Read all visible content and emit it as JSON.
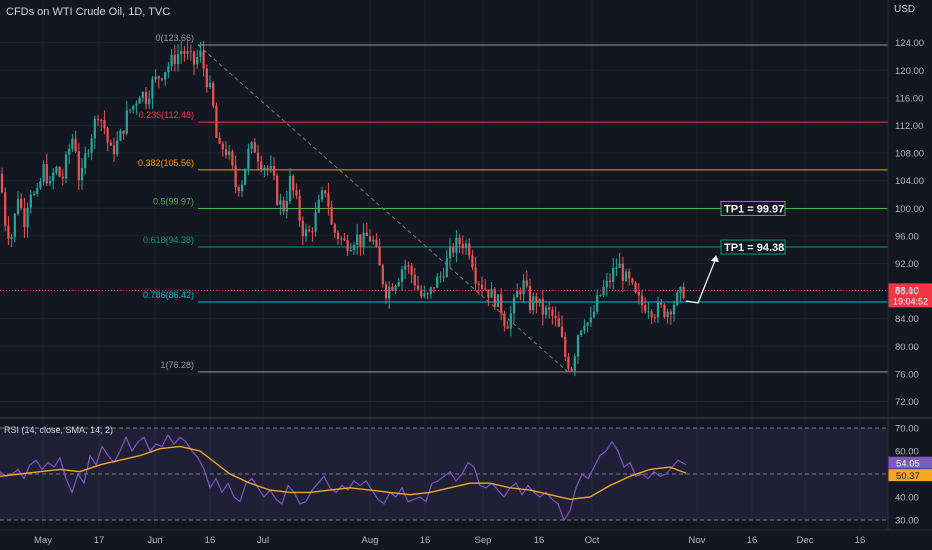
{
  "header": {
    "title": "CFDs on WTI Crude Oil, 1D, TVC",
    "currency": "USD"
  },
  "colors": {
    "background": "#131722",
    "up": "#26a69a",
    "down": "#ef5350",
    "fib_0": "#9598a1",
    "fib_236": "#f23645",
    "fib_382": "#ff9800",
    "fib_5": "#4caf50",
    "fib_618": "#089981",
    "fib_786": "#00bcd4",
    "fib_1": "#9598a1",
    "rsi_line": "#7e57c2",
    "rsi_ma": "#f5a623",
    "price_label": "#f23645"
  },
  "chart_data": [
    {
      "type": "candlestick",
      "title": "CFDs on WTI Crude Oil, 1D, TVC",
      "ylim": [
        70,
        126
      ],
      "y_ticks": [
        "124.00",
        "120.00",
        "116.00",
        "112.00",
        "108.00",
        "104.00",
        "100.00",
        "96.00",
        "92.00",
        "88.00",
        "84.00",
        "80.00",
        "76.00",
        "72.00"
      ],
      "x_ticks": [
        "May",
        "17",
        "Jun",
        "16",
        "Jul",
        "Aug",
        "16",
        "Sep",
        "16",
        "Oct",
        "Nov",
        "16",
        "Dec",
        "16"
      ],
      "price_path": [
        [
          0,
          105
        ],
        [
          6,
          97
        ],
        [
          12,
          96
        ],
        [
          18,
          102
        ],
        [
          24,
          98
        ],
        [
          30,
          103
        ],
        [
          36,
          101
        ],
        [
          44,
          106
        ],
        [
          50,
          103
        ],
        [
          55,
          106
        ],
        [
          62,
          104
        ],
        [
          68,
          108
        ],
        [
          74,
          111
        ],
        [
          80,
          103
        ],
        [
          86,
          108
        ],
        [
          92,
          111
        ],
        [
          98,
          114
        ],
        [
          104,
          112
        ],
        [
          110,
          108
        ],
        [
          116,
          109
        ],
        [
          122,
          111
        ],
        [
          128,
          114
        ],
        [
          134,
          115
        ],
        [
          140,
          117
        ],
        [
          146,
          116
        ],
        [
          152,
          118
        ],
        [
          158,
          119
        ],
        [
          164,
          120
        ],
        [
          170,
          121
        ],
        [
          176,
          122
        ],
        [
          182,
          123
        ],
        [
          188,
          122
        ],
        [
          194,
          121
        ],
        [
          200,
          122.5
        ],
        [
          206,
          119
        ],
        [
          212,
          116
        ],
        [
          218,
          108
        ],
        [
          224,
          109
        ],
        [
          230,
          107
        ],
        [
          236,
          103
        ],
        [
          242,
          104
        ],
        [
          248,
          108
        ],
        [
          254,
          109
        ],
        [
          260,
          107
        ],
        [
          266,
          106
        ],
        [
          272,
          105
        ],
        [
          278,
          101
        ],
        [
          284,
          100
        ],
        [
          290,
          104
        ],
        [
          296,
          101
        ],
        [
          302,
          97
        ],
        [
          308,
          96
        ],
        [
          314,
          98
        ],
        [
          320,
          101
        ],
        [
          326,
          103
        ],
        [
          332,
          97
        ],
        [
          338,
          96
        ],
        [
          344,
          95
        ],
        [
          350,
          95
        ],
        [
          356,
          96
        ],
        [
          362,
          95
        ],
        [
          368,
          96
        ],
        [
          374,
          95
        ],
        [
          380,
          91
        ],
        [
          386,
          88
        ],
        [
          392,
          89
        ],
        [
          398,
          90
        ],
        [
          404,
          92
        ],
        [
          410,
          91
        ],
        [
          416,
          89
        ],
        [
          422,
          87
        ],
        [
          428,
          87
        ],
        [
          434,
          89
        ],
        [
          440,
          90
        ],
        [
          446,
          92
        ],
        [
          452,
          94
        ],
        [
          458,
          95
        ],
        [
          464,
          95
        ],
        [
          470,
          94
        ],
        [
          476,
          90
        ],
        [
          482,
          89
        ],
        [
          488,
          88
        ],
        [
          494,
          87
        ],
        [
          500,
          86
        ],
        [
          506,
          83
        ],
        [
          512,
          85
        ],
        [
          518,
          88
        ],
        [
          524,
          89
        ],
        [
          530,
          86
        ],
        [
          536,
          87
        ],
        [
          542,
          85
        ],
        [
          548,
          85
        ],
        [
          554,
          84
        ],
        [
          560,
          82
        ],
        [
          566,
          78
        ],
        [
          572,
          77
        ],
        [
          578,
          82
        ],
        [
          584,
          84
        ],
        [
          590,
          83
        ],
        [
          596,
          86
        ],
        [
          602,
          88
        ],
        [
          608,
          89
        ],
        [
          614,
          91
        ],
        [
          618,
          92
        ],
        [
          624,
          90
        ],
        [
          630,
          89
        ],
        [
          636,
          87
        ],
        [
          642,
          86
        ],
        [
          648,
          86
        ],
        [
          654,
          85
        ],
        [
          660,
          85.5
        ],
        [
          666,
          85
        ],
        [
          672,
          86
        ],
        [
          678,
          87
        ],
        [
          684,
          88.1
        ]
      ]
    },
    {
      "type": "fibonacci_retracement",
      "levels": [
        {
          "ratio": "0",
          "price": 123.66,
          "label": "0(123.66)"
        },
        {
          "ratio": "0.236",
          "price": 112.48,
          "label": "0.236(112.48)"
        },
        {
          "ratio": "0.382",
          "price": 105.56,
          "label": "0.382(105.56)"
        },
        {
          "ratio": "0.5",
          "price": 99.97,
          "label": "0.5(99.97)"
        },
        {
          "ratio": "0.618",
          "price": 94.38,
          "label": "0.618(94.38)"
        },
        {
          "ratio": "0.786",
          "price": 86.42,
          "label": "0.786(86.42)"
        },
        {
          "ratio": "1",
          "price": 76.28,
          "label": "1(76.28)"
        }
      ],
      "targets": [
        {
          "label": "TP1 = 99.97",
          "price": 99.97
        },
        {
          "label": "TP1 = 94.38",
          "price": 94.38
        }
      ],
      "last_price": {
        "value": "88.10",
        "countdown": "19:04:52"
      }
    },
    {
      "type": "line",
      "title": "RSI (14, close, SMA, 14, 2)",
      "ylim": [
        28,
        72
      ],
      "y_ticks": [
        "70.00",
        "60.00",
        "50.00",
        "40.00",
        "30.00"
      ],
      "bands": [
        70,
        50,
        30
      ],
      "series": [
        {
          "name": "RSI",
          "value_label": "54.05",
          "path": [
            [
              0,
              51
            ],
            [
              6,
              49
            ],
            [
              12,
              50
            ],
            [
              18,
              52
            ],
            [
              24,
              48
            ],
            [
              30,
              54
            ],
            [
              36,
              56
            ],
            [
              42,
              52
            ],
            [
              48,
              55
            ],
            [
              54,
              53
            ],
            [
              60,
              57
            ],
            [
              66,
              48
            ],
            [
              72,
              42
            ],
            [
              78,
              50
            ],
            [
              84,
              46
            ],
            [
              90,
              58
            ],
            [
              96,
              54
            ],
            [
              102,
              62
            ],
            [
              108,
              58
            ],
            [
              114,
              55
            ],
            [
              120,
              60
            ],
            [
              126,
              66
            ],
            [
              132,
              60
            ],
            [
              138,
              64
            ],
            [
              144,
              66
            ],
            [
              150,
              60
            ],
            [
              156,
              63
            ],
            [
              162,
              62
            ],
            [
              168,
              67
            ],
            [
              174,
              63
            ],
            [
              180,
              66
            ],
            [
              186,
              64
            ],
            [
              192,
              60
            ],
            [
              198,
              57
            ],
            [
              204,
              52
            ],
            [
              210,
              44
            ],
            [
              216,
              48
            ],
            [
              222,
              42
            ],
            [
              228,
              46
            ],
            [
              234,
              40
            ],
            [
              240,
              38
            ],
            [
              246,
              46
            ],
            [
              252,
              48
            ],
            [
              258,
              44
            ],
            [
              264,
              40
            ],
            [
              270,
              43
            ],
            [
              276,
              39
            ],
            [
              282,
              37
            ],
            [
              288,
              45
            ],
            [
              294,
              42
            ],
            [
              300,
              37
            ],
            [
              306,
              38
            ],
            [
              312,
              43
            ],
            [
              318,
              46
            ],
            [
              324,
              49
            ],
            [
              330,
              44
            ],
            [
              336,
              42
            ],
            [
              342,
              45
            ],
            [
              348,
              43
            ],
            [
              354,
              47
            ],
            [
              360,
              45
            ],
            [
              366,
              47
            ],
            [
              372,
              43
            ],
            [
              378,
              39
            ],
            [
              384,
              37
            ],
            [
              390,
              42
            ],
            [
              396,
              40
            ],
            [
              402,
              44
            ],
            [
              408,
              38
            ],
            [
              414,
              39
            ],
            [
              420,
              40
            ],
            [
              426,
              38
            ],
            [
              432,
              46
            ],
            [
              438,
              47
            ],
            [
              444,
              49
            ],
            [
              450,
              51
            ],
            [
              456,
              47
            ],
            [
              462,
              50
            ],
            [
              468,
              55
            ],
            [
              474,
              53
            ],
            [
              480,
              45
            ],
            [
              486,
              44
            ],
            [
              492,
              46
            ],
            [
              498,
              43
            ],
            [
              504,
              40
            ],
            [
              510,
              44
            ],
            [
              516,
              46
            ],
            [
              522,
              41
            ],
            [
              528,
              45
            ],
            [
              534,
              42
            ],
            [
              540,
              40
            ],
            [
              546,
              42
            ],
            [
              552,
              39
            ],
            [
              558,
              37
            ],
            [
              564,
              30
            ],
            [
              570,
              34
            ],
            [
              576,
              44
            ],
            [
              582,
              50
            ],
            [
              588,
              48
            ],
            [
              594,
              53
            ],
            [
              600,
              58
            ],
            [
              606,
              60
            ],
            [
              612,
              64
            ],
            [
              618,
              60
            ],
            [
              624,
              53
            ],
            [
              630,
              55
            ],
            [
              636,
              49
            ],
            [
              642,
              50
            ],
            [
              648,
              48
            ],
            [
              654,
              51
            ],
            [
              660,
              49
            ],
            [
              666,
              50
            ],
            [
              672,
              53
            ],
            [
              678,
              56
            ],
            [
              686,
              54.05
            ]
          ]
        },
        {
          "name": "SMA",
          "value_label": "50.37",
          "path": [
            [
              0,
              49
            ],
            [
              20,
              50
            ],
            [
              40,
              51
            ],
            [
              60,
              52
            ],
            [
              80,
              51
            ],
            [
              100,
              54
            ],
            [
              120,
              56
            ],
            [
              140,
              58
            ],
            [
              160,
              61
            ],
            [
              180,
              62
            ],
            [
              200,
              60
            ],
            [
              215,
              55
            ],
            [
              230,
              50
            ],
            [
              250,
              46
            ],
            [
              270,
              43
            ],
            [
              290,
              42
            ],
            [
              310,
              42
            ],
            [
              330,
              43
            ],
            [
              350,
              44
            ],
            [
              370,
              43
            ],
            [
              390,
              42
            ],
            [
              410,
              41
            ],
            [
              430,
              42
            ],
            [
              450,
              44
            ],
            [
              470,
              46
            ],
            [
              490,
              46
            ],
            [
              510,
              44
            ],
            [
              530,
              43
            ],
            [
              550,
              41
            ],
            [
              570,
              39
            ],
            [
              590,
              40
            ],
            [
              610,
              45
            ],
            [
              630,
              49
            ],
            [
              650,
              52
            ],
            [
              670,
              53
            ],
            [
              686,
              50.37
            ]
          ]
        }
      ]
    }
  ]
}
